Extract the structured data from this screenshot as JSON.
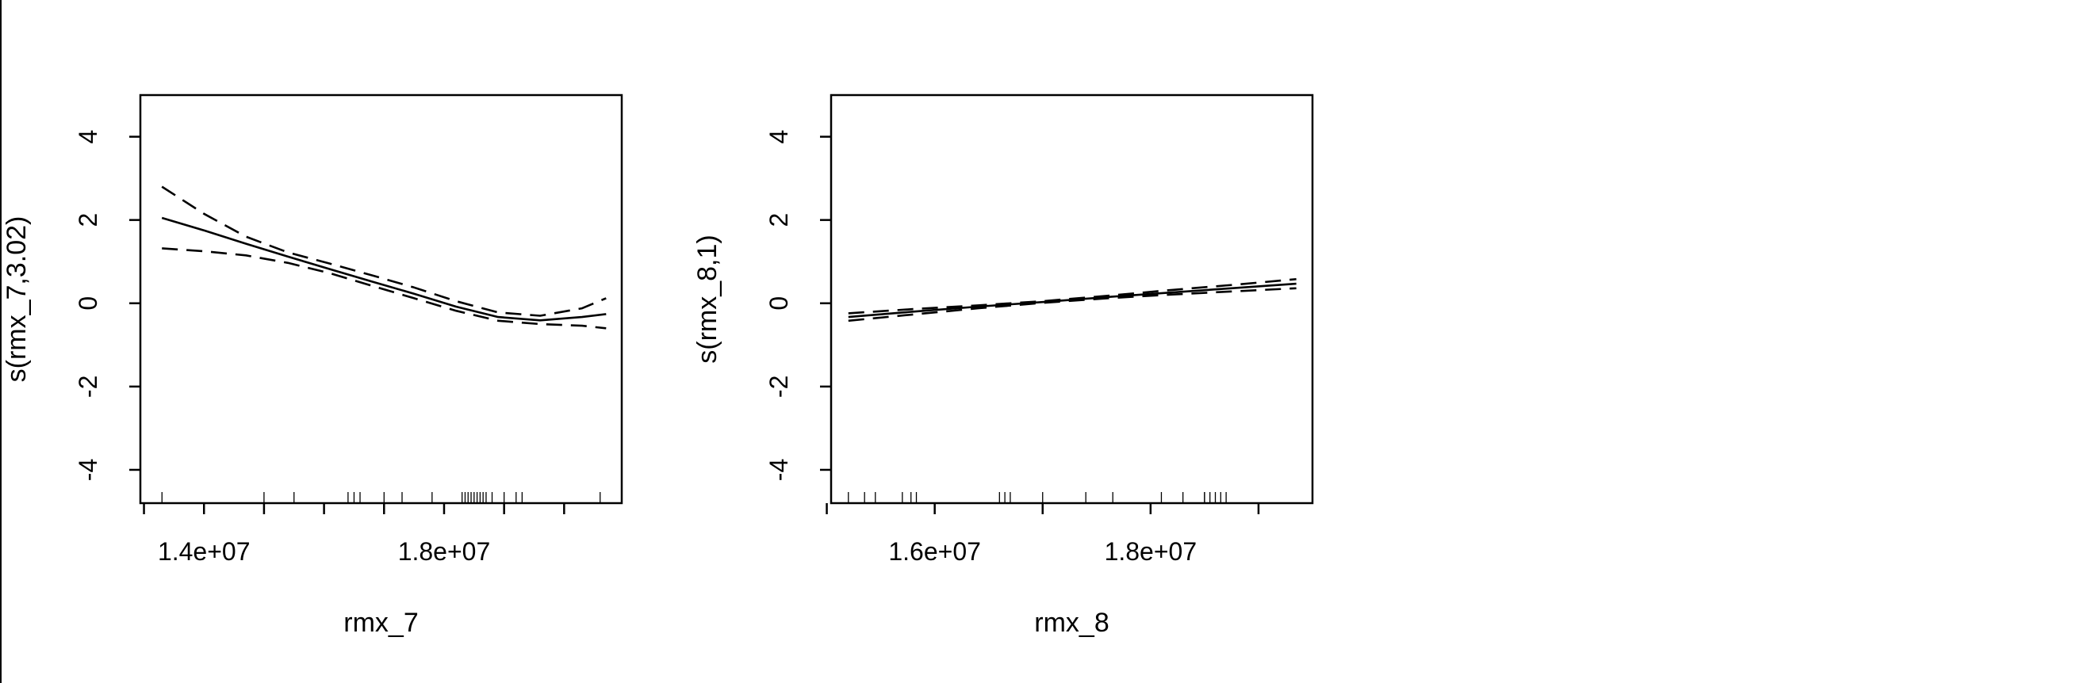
{
  "chart_data": [
    {
      "type": "line",
      "title": "",
      "xlabel": "rmx_7",
      "ylabel": "s(rmx_7,3.02)",
      "xlim": [
        12940000,
        20960000
      ],
      "ylim": [
        -4.8,
        5
      ],
      "xticks": [
        13000000,
        14000000,
        15000000,
        16000000,
        17000000,
        18000000,
        19000000,
        20000000
      ],
      "xtick_labels": [
        "",
        "1.4e+07",
        "",
        "",
        "",
        "1.8e+07",
        "",
        ""
      ],
      "yticks": [
        -4,
        -2,
        0,
        2,
        4
      ],
      "ytick_labels": [
        "-4",
        "-2",
        "0",
        "2",
        "4"
      ],
      "grid": false,
      "series": [
        {
          "style": "solid",
          "x": [
            13300000,
            14000000,
            14700000,
            15400000,
            16100000,
            16800000,
            17500000,
            18200000,
            18900000,
            19600000,
            20300000,
            20700000
          ],
          "y": [
            2.05,
            1.75,
            1.43,
            1.12,
            0.82,
            0.52,
            0.23,
            -0.08,
            -0.33,
            -0.41,
            -0.33,
            -0.26
          ]
        },
        {
          "style": "dashed",
          "x": [
            13300000,
            14000000,
            14700000,
            15400000,
            16100000,
            16800000,
            17500000,
            18200000,
            18900000,
            19600000,
            20300000,
            20700000
          ],
          "y": [
            2.8,
            2.15,
            1.6,
            1.22,
            0.95,
            0.67,
            0.38,
            0.05,
            -0.22,
            -0.3,
            -0.12,
            0.12
          ]
        },
        {
          "style": "dashed",
          "x": [
            13300000,
            14000000,
            14700000,
            15400000,
            16100000,
            16800000,
            17500000,
            18200000,
            18900000,
            19600000,
            20300000,
            20700000
          ],
          "y": [
            1.32,
            1.25,
            1.15,
            0.97,
            0.72,
            0.42,
            0.12,
            -0.18,
            -0.42,
            -0.5,
            -0.54,
            -0.6
          ]
        }
      ],
      "rug": [
        13300000,
        15000000,
        15500000,
        16400000,
        16500000,
        16600000,
        17000000,
        17300000,
        17800000,
        18300000,
        18350000,
        18400000,
        18450000,
        18500000,
        18550000,
        18600000,
        18650000,
        18700000,
        18800000,
        19000000,
        19200000,
        19300000,
        20600000
      ]
    },
    {
      "type": "line",
      "title": "",
      "xlabel": "rmx_8",
      "ylabel": "s(rmx_8,1)",
      "xlim": [
        15040000,
        19500000
      ],
      "ylim": [
        -4.8,
        5
      ],
      "xticks": [
        15000000,
        16000000,
        17000000,
        18000000,
        19000000
      ],
      "xtick_labels": [
        "",
        "1.6e+07",
        "",
        "1.8e+07",
        ""
      ],
      "yticks": [
        -4,
        -2,
        0,
        2,
        4
      ],
      "ytick_labels": [
        "-4",
        "-2",
        "0",
        "2",
        "4"
      ],
      "grid": false,
      "series": [
        {
          "style": "solid",
          "x": [
            15200000,
            15800000,
            16400000,
            17000000,
            17600000,
            18200000,
            18800000,
            19350000
          ],
          "y": [
            -0.33,
            -0.2,
            -0.08,
            0.03,
            0.15,
            0.26,
            0.37,
            0.47
          ]
        },
        {
          "style": "dashed",
          "x": [
            15200000,
            15800000,
            16400000,
            17000000,
            17600000,
            18200000,
            18800000,
            19350000
          ],
          "y": [
            -0.24,
            -0.14,
            -0.05,
            0.05,
            0.18,
            0.32,
            0.45,
            0.58
          ]
        },
        {
          "style": "dashed",
          "x": [
            15200000,
            15800000,
            16400000,
            17000000,
            17600000,
            18200000,
            18800000,
            19350000
          ],
          "y": [
            -0.42,
            -0.27,
            -0.12,
            0.01,
            0.12,
            0.21,
            0.29,
            0.36
          ]
        }
      ],
      "rug": [
        15200000,
        15350000,
        15450000,
        15700000,
        15780000,
        15830000,
        16600000,
        16650000,
        16700000,
        17000000,
        17400000,
        17650000,
        18100000,
        18300000,
        18500000,
        18500000,
        18550000,
        18600000,
        18650000,
        18700000
      ]
    }
  ]
}
